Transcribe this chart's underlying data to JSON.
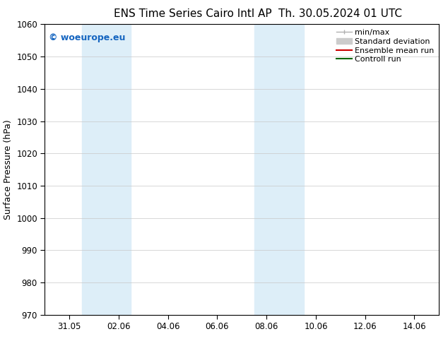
{
  "title_left": "ENS Time Series Cairo Intl AP",
  "title_right": "Th. 30.05.2024 01 UTC",
  "ylabel": "Surface Pressure (hPa)",
  "ylim": [
    970,
    1060
  ],
  "yticks": [
    970,
    980,
    990,
    1000,
    1010,
    1020,
    1030,
    1040,
    1050,
    1060
  ],
  "xtick_labels": [
    "31.05",
    "02.06",
    "04.06",
    "06.06",
    "08.06",
    "10.06",
    "12.06",
    "14.06"
  ],
  "xtick_positions": [
    1,
    3,
    5,
    7,
    9,
    11,
    13,
    15
  ],
  "xlim": [
    0,
    16
  ],
  "shaded_bands": [
    {
      "x_start": 1.5,
      "x_end": 3.5
    },
    {
      "x_start": 8.5,
      "x_end": 10.5
    }
  ],
  "shaded_color": "#ddeef8",
  "watermark_text": "© woeurope.eu",
  "watermark_color": "#1565c0",
  "legend_items": [
    {
      "label": "min/max",
      "color": "#b0b0b0",
      "lw": 1.0
    },
    {
      "label": "Standard deviation",
      "color": "#cccccc",
      "lw": 6
    },
    {
      "label": "Ensemble mean run",
      "color": "#cc0000",
      "lw": 1.5
    },
    {
      "label": "Controll run",
      "color": "#006600",
      "lw": 1.5
    }
  ],
  "bg_color": "#ffffff",
  "plot_bg_color": "#ffffff",
  "grid_color": "#c8c8c8",
  "title_fontsize": 11,
  "axis_label_fontsize": 9,
  "tick_fontsize": 8.5,
  "legend_fontsize": 8
}
